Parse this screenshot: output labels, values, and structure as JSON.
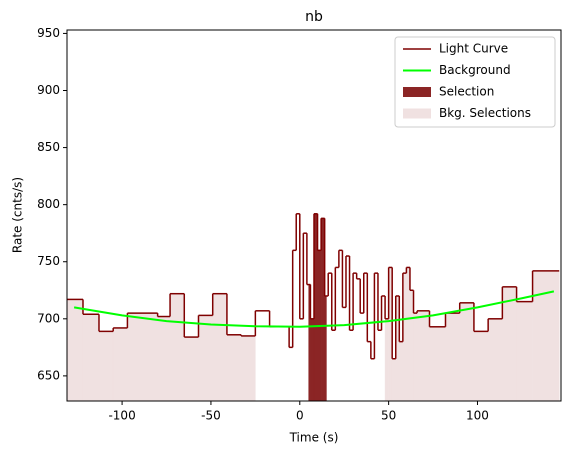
{
  "chart_data": {
    "type": "lightcurve",
    "title": "nb",
    "x_label": "Time (s)",
    "y_label": "Rate (cnts/s)",
    "xlim": [
      -131,
      147
    ],
    "ylim": [
      628,
      953
    ],
    "xticks": [
      -100,
      -50,
      0,
      50,
      100
    ],
    "yticks": [
      650,
      700,
      750,
      800,
      850,
      900,
      950
    ],
    "legend_position": "upper right",
    "light_curve": {
      "name": "Light Curve",
      "color": "#7f0000",
      "bins": [
        -131,
        -122,
        -113,
        -105,
        -97,
        -80,
        -73,
        -65,
        -57,
        -49,
        -41,
        -33,
        -25,
        -17,
        -6,
        -4,
        -2,
        0,
        2,
        4,
        6,
        8,
        10,
        12,
        14,
        16,
        18,
        20,
        22,
        24,
        26,
        28,
        30,
        32,
        34,
        36,
        38,
        40,
        42,
        44,
        46,
        48,
        50,
        52,
        54,
        56,
        58,
        60,
        62,
        64,
        66,
        73,
        82,
        90,
        98,
        106,
        114,
        122,
        131,
        146
      ],
      "values": [
        717,
        704,
        689,
        692,
        705,
        702,
        722,
        684,
        703,
        722,
        686,
        685,
        707,
        693,
        675,
        760,
        792,
        700,
        775,
        730,
        700,
        792,
        760,
        788,
        720,
        740,
        690,
        745,
        760,
        710,
        755,
        690,
        740,
        735,
        705,
        740,
        680,
        665,
        740,
        690,
        720,
        700,
        745,
        665,
        720,
        680,
        740,
        745,
        725,
        705,
        707,
        693,
        705,
        714,
        689,
        700,
        728,
        715,
        742
      ]
    },
    "background": {
      "name": "Background",
      "color": "#00ff00",
      "x": [
        -127,
        -100,
        -75,
        -50,
        -25,
        0,
        25,
        50,
        75,
        100,
        125,
        143
      ],
      "values": [
        710,
        703,
        698,
        695,
        693.5,
        693,
        694.5,
        698,
        703,
        710,
        718,
        724
      ]
    },
    "selection": {
      "name": "Selection",
      "color": "#8b2525",
      "ranges": [
        [
          5,
          15
        ]
      ]
    },
    "bkg_selections": {
      "name": "Bkg. Selections",
      "color": "#f0e1e1",
      "ranges": [
        [
          -131,
          -25
        ],
        [
          48,
          147
        ]
      ]
    }
  }
}
